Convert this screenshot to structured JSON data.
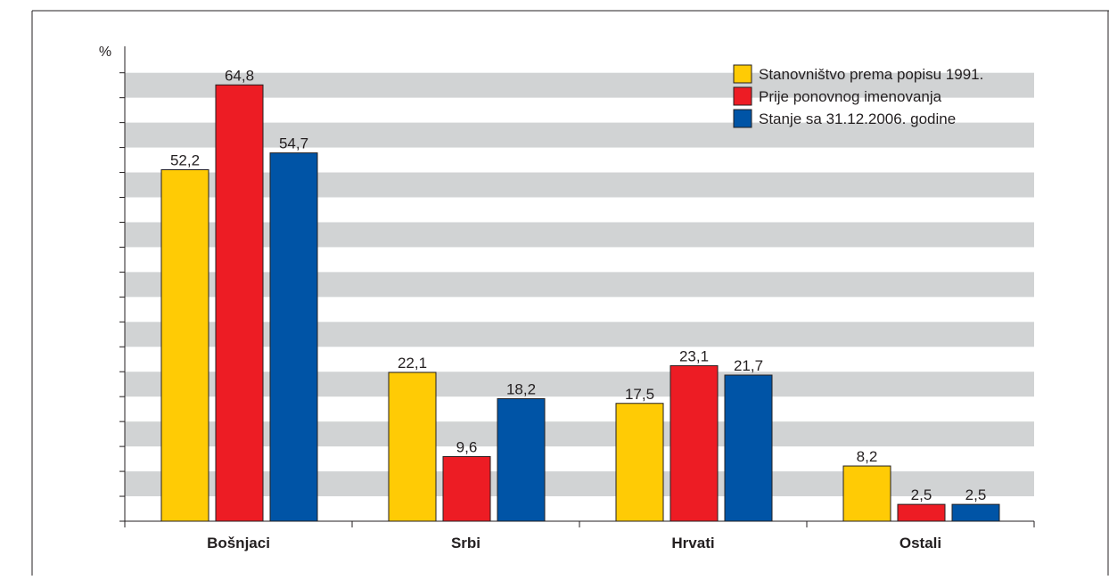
{
  "chart_data": {
    "type": "bar",
    "ylabel": "%",
    "ylim": [
      0,
      70
    ],
    "ytick_step": 3.7,
    "stripes": true,
    "legend_position": "top-right",
    "categories": [
      "Bošnjaci",
      "Srbi",
      "Hrvati",
      "Ostali"
    ],
    "series": [
      {
        "name": "Stanovništvo prema popisu 1991.",
        "color": "#FFCB05",
        "values": [
          52.2,
          22.1,
          17.5,
          8.2
        ],
        "labels": [
          "52,2",
          "22,1",
          "17,5",
          "8,2"
        ]
      },
      {
        "name": "Prije ponovnog imenovanja",
        "color": "#ED1C24",
        "values": [
          64.8,
          9.6,
          23.1,
          2.5
        ],
        "labels": [
          "64,8",
          "9,6",
          "23,1",
          "2,5"
        ]
      },
      {
        "name": "Stanje sa 31.12.2006. godine",
        "color": "#0054A6",
        "values": [
          54.7,
          18.2,
          21.7,
          2.5
        ],
        "labels": [
          "54,7",
          "18,2",
          "21,7",
          "2,5"
        ]
      }
    ]
  }
}
